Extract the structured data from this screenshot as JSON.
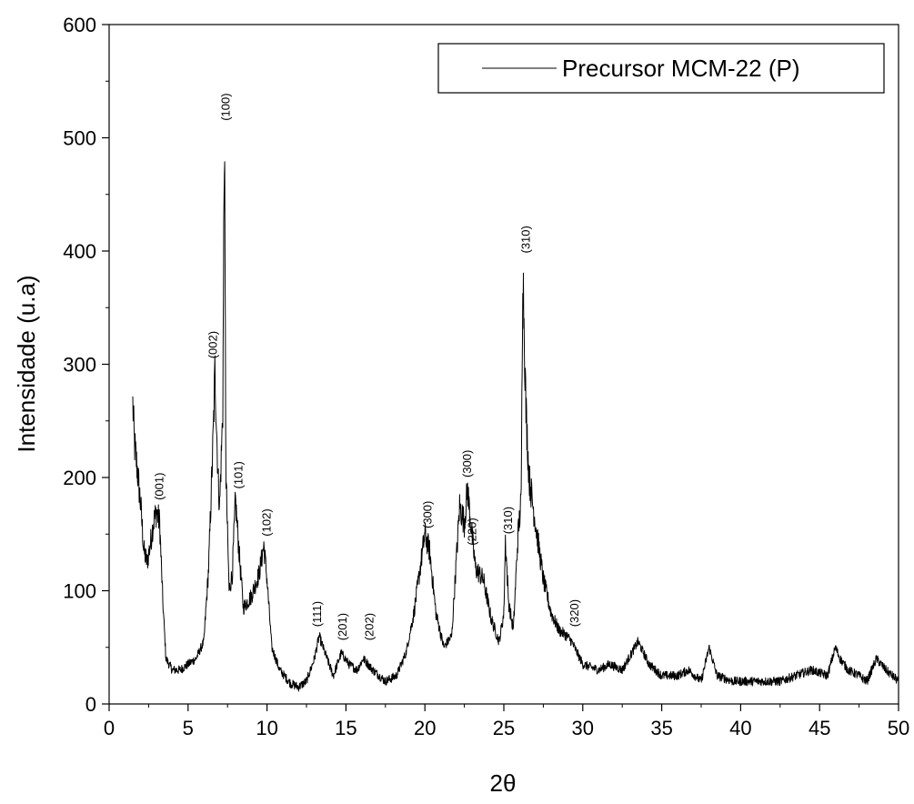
{
  "chart_data": {
    "type": "line",
    "title": "",
    "xlabel": "2θ",
    "ylabel": "Intensidade (u.a)",
    "xlim": [
      0,
      50
    ],
    "ylim": [
      0,
      600
    ],
    "xticks": [
      0,
      5,
      10,
      15,
      20,
      25,
      30,
      35,
      40,
      45,
      50
    ],
    "yticks": [
      0,
      100,
      200,
      300,
      400,
      500,
      600
    ],
    "grid": false,
    "legend": {
      "position": "top-right",
      "entries": [
        "Precursor MCM-22 (P)"
      ]
    },
    "series": [
      {
        "name": "Precursor MCM-22 (P)",
        "color": "#000000",
        "x": [
          1.5,
          1.6,
          1.8,
          2.0,
          2.2,
          2.4,
          2.6,
          2.8,
          3.0,
          3.2,
          3.4,
          3.6,
          3.8,
          4.0,
          4.5,
          5.0,
          5.5,
          6.0,
          6.3,
          6.6,
          6.7,
          6.9,
          7.0,
          7.2,
          7.3,
          7.4,
          7.6,
          7.8,
          8.0,
          8.2,
          8.5,
          9.0,
          9.5,
          9.8,
          10.0,
          10.3,
          10.8,
          11.5,
          12.0,
          12.5,
          13.0,
          13.3,
          13.8,
          14.2,
          14.7,
          15.2,
          15.7,
          16.1,
          16.7,
          17.5,
          18.2,
          18.8,
          19.3,
          19.7,
          20.0,
          20.3,
          20.7,
          21.2,
          21.7,
          22.2,
          22.5,
          22.7,
          22.9,
          23.2,
          23.7,
          24.2,
          24.7,
          25.0,
          25.1,
          25.3,
          25.6,
          25.9,
          26.1,
          26.2,
          26.4,
          26.6,
          27.0,
          27.5,
          28.0,
          28.5,
          29.0,
          29.3,
          30.0,
          31.0,
          31.7,
          32.5,
          33.5,
          34.2,
          35.0,
          36.0,
          36.7,
          37.5,
          38.0,
          38.5,
          39.5,
          40.5,
          41.5,
          42.5,
          43.5,
          44.5,
          45.5,
          46.0,
          46.3,
          46.8,
          47.5,
          48.0,
          48.6,
          49.2,
          50.0
        ],
        "y": [
          265,
          230,
          205,
          175,
          135,
          125,
          140,
          160,
          170,
          160,
          90,
          40,
          35,
          30,
          30,
          35,
          40,
          55,
          120,
          240,
          295,
          200,
          175,
          260,
          505,
          200,
          100,
          115,
          180,
          140,
          85,
          95,
          115,
          140,
          110,
          50,
          30,
          18,
          15,
          20,
          40,
          60,
          40,
          25,
          45,
          35,
          30,
          40,
          30,
          20,
          25,
          45,
          80,
          120,
          150,
          135,
          80,
          50,
          60,
          175,
          160,
          190,
          160,
          120,
          110,
          75,
          55,
          80,
          145,
          90,
          65,
          150,
          180,
          390,
          260,
          200,
          160,
          110,
          80,
          65,
          60,
          55,
          35,
          30,
          35,
          30,
          55,
          35,
          25,
          25,
          30,
          20,
          50,
          25,
          20,
          20,
          20,
          20,
          25,
          30,
          25,
          50,
          40,
          30,
          25,
          20,
          40,
          30,
          20
        ]
      }
    ],
    "annotations": [
      {
        "text": "(001)",
        "x": 3.2,
        "y": 180
      },
      {
        "text": "(002)",
        "x": 6.6,
        "y": 305
      },
      {
        "text": "(100)",
        "x": 7.4,
        "y": 515
      },
      {
        "text": "(101)",
        "x": 8.2,
        "y": 190
      },
      {
        "text": "(102)",
        "x": 10.0,
        "y": 148
      },
      {
        "text": "(111)",
        "x": 13.2,
        "y": 68
      },
      {
        "text": "(201)",
        "x": 14.8,
        "y": 56
      },
      {
        "text": "(202)",
        "x": 16.5,
        "y": 56
      },
      {
        "text": "(300)",
        "x": 20.2,
        "y": 155
      },
      {
        "text": "(300)",
        "x": 22.7,
        "y": 200
      },
      {
        "text": "(220)",
        "x": 23.0,
        "y": 140
      },
      {
        "text": "(310)",
        "x": 25.3,
        "y": 150
      },
      {
        "text": "(310)",
        "x": 26.4,
        "y": 398
      },
      {
        "text": "(320)",
        "x": 29.5,
        "y": 68
      }
    ]
  }
}
